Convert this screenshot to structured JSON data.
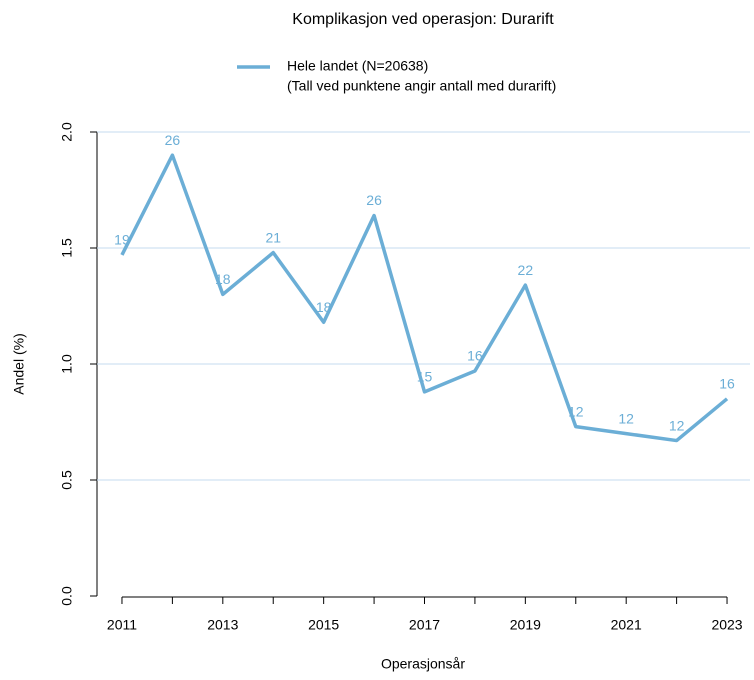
{
  "chart_data": {
    "type": "line",
    "title": "Komplikasjon ved operasjon: Durarift",
    "legend_note": "(Tall ved punktene angir antall med durarift)",
    "x_label": "Operasjonsår",
    "y_label": "Andel (%)",
    "x": [
      2011,
      2012,
      2013,
      2014,
      2015,
      2016,
      2017,
      2018,
      2019,
      2020,
      2021,
      2022,
      2023
    ],
    "series": [
      {
        "name": "Hele landet (N=20638)",
        "color": "#6baed6",
        "values": [
          1.47,
          1.9,
          1.3,
          1.48,
          1.18,
          1.64,
          0.88,
          0.97,
          1.34,
          0.73,
          0.7,
          0.67,
          0.85
        ],
        "counts": [
          19,
          26,
          18,
          21,
          18,
          26,
          15,
          16,
          22,
          12,
          12,
          12,
          16
        ]
      }
    ],
    "xlim": [
      2010.6,
      2023.4
    ],
    "xticks": [
      2011,
      2012,
      2013,
      2014,
      2015,
      2016,
      2017,
      2018,
      2019,
      2020,
      2021,
      2022,
      2023
    ],
    "x_label_every": 2,
    "ylim": [
      0,
      2
    ],
    "yticks": [
      {
        "value": 0,
        "label": "0.0"
      },
      0.5,
      {
        "value": 1,
        "label": "1.0"
      },
      1.5,
      {
        "value": 2,
        "label": "2.0"
      }
    ],
    "grid": true,
    "grid_color": "#c6dbef"
  }
}
